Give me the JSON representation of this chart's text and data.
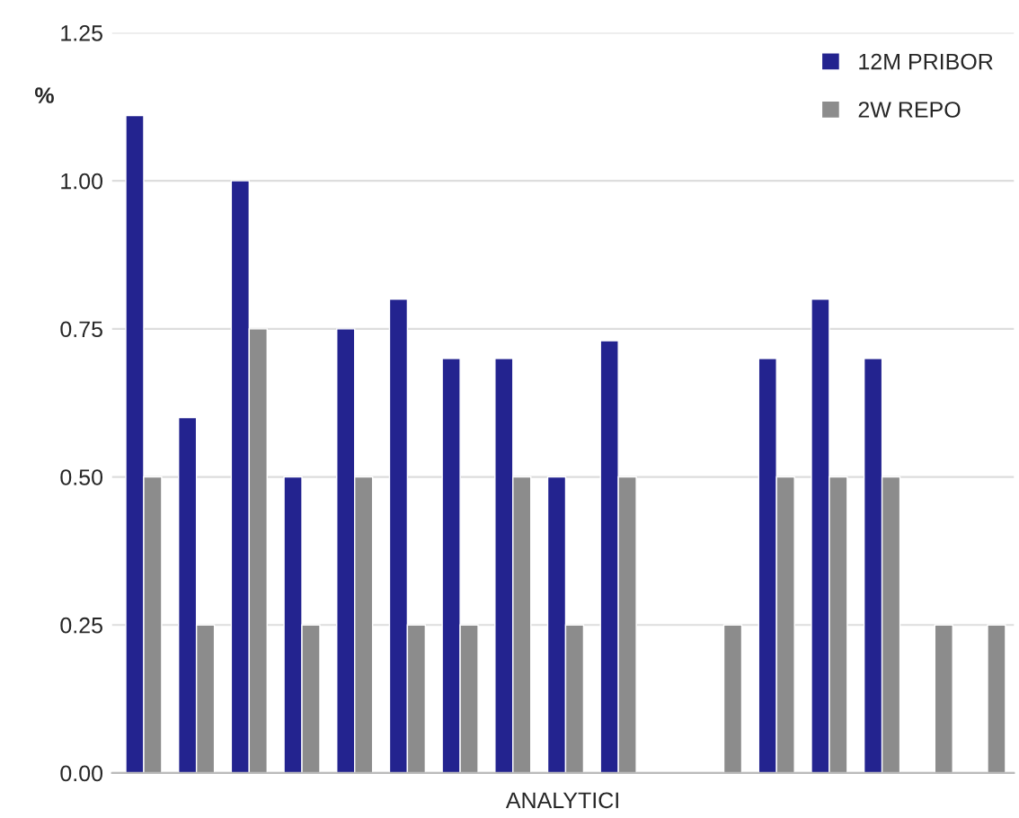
{
  "chart_data": {
    "type": "bar",
    "ylabel": "%",
    "xlabel": "ANALYTICI",
    "categories": [
      null,
      null,
      null,
      null,
      null,
      null,
      null,
      null,
      null,
      null,
      null,
      null,
      null,
      null,
      null,
      null,
      null
    ],
    "series": [
      {
        "name": "12M PRIBOR",
        "color": "#23238f",
        "values": [
          1.11,
          0.6,
          1.0,
          0.5,
          0.75,
          0.8,
          0.7,
          0.7,
          0.5,
          0.73,
          null,
          null,
          0.7,
          0.8,
          0.7,
          null,
          null
        ]
      },
      {
        "name": "2W REPO",
        "color": "#8c8c8c",
        "values": [
          0.5,
          0.25,
          0.75,
          0.25,
          0.5,
          0.25,
          0.25,
          0.5,
          0.25,
          0.5,
          null,
          0.25,
          0.5,
          0.5,
          0.5,
          0.25,
          0.25
        ]
      }
    ],
    "ylim": [
      0,
      1.25
    ],
    "yticks": [
      {
        "value": 0,
        "label": "0.00"
      },
      {
        "value": 0.25,
        "label": "0.25"
      },
      {
        "value": 0.5,
        "label": "0.50"
      },
      {
        "value": 0.75,
        "label": "0.75"
      },
      {
        "value": 1.0,
        "label": "1.00"
      },
      {
        "value": 1.25,
        "label": "1.25"
      }
    ],
    "grid": "y",
    "legend": "top right"
  }
}
